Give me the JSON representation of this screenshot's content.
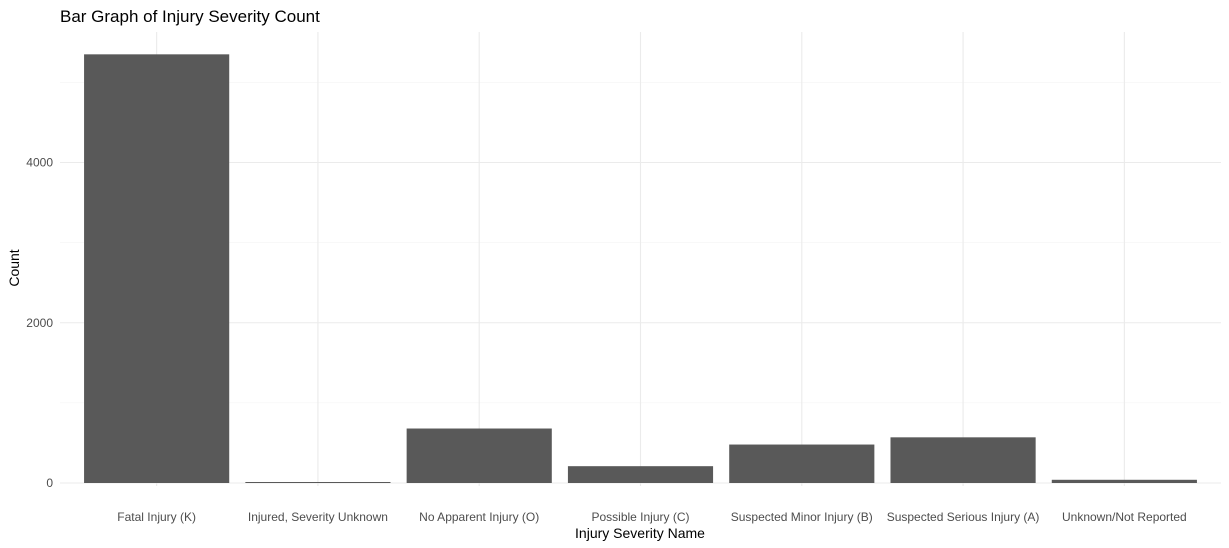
{
  "chart_data": {
    "type": "bar",
    "title": "Bar Graph of Injury Severity Count",
    "xlabel": "Injury Severity Name",
    "ylabel": "Count",
    "categories": [
      "Fatal Injury (K)",
      "Injured, Severity Unknown",
      "No Apparent Injury (O)",
      "Possible Injury (C)",
      "Suspected Minor Injury (B)",
      "Suspected Serious Injury (A)",
      "Unknown/Not Reported"
    ],
    "values": [
      5350,
      10,
      680,
      210,
      480,
      570,
      40
    ],
    "ylim": [
      0,
      5600
    ],
    "yticks": [
      0,
      2000,
      4000
    ],
    "grid": true,
    "bar_color": "#595959",
    "legend": "none"
  }
}
